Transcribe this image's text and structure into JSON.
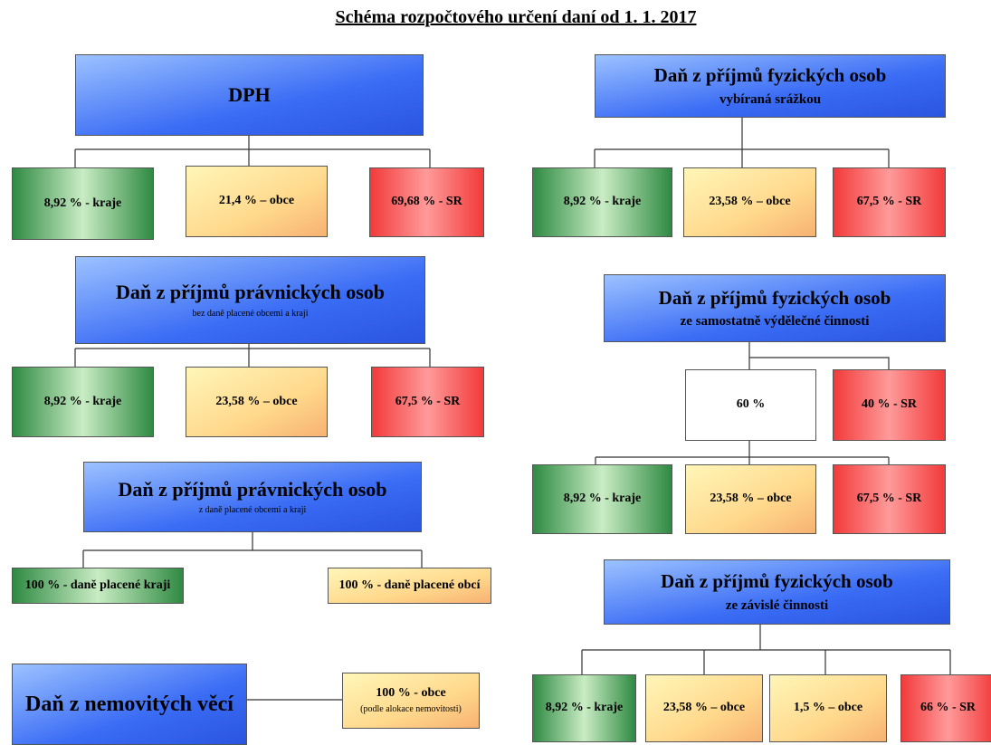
{
  "title": "Schéma rozpočtového určení daní od 1. 1. 2017",
  "boxes": [
    {
      "label": "DPH"
    },
    {
      "label": "8,92 % - kraje"
    },
    {
      "label": "21,4 % – obce"
    },
    {
      "label": "69,68 % - SR"
    },
    {
      "label": "Daň z příjmů fyzických osob",
      "sublabel": "vybíraná srážkou"
    },
    {
      "label": "8,92 % - kraje"
    },
    {
      "label": "23,58 % – obce"
    },
    {
      "label": "67,5 % - SR"
    },
    {
      "label": "Daň z příjmů právnických osob",
      "sublabel": "bez daně placené obcemi a kraji"
    },
    {
      "label": "8,92 % - kraje"
    },
    {
      "label": "23,58 % – obce"
    },
    {
      "label": "67,5 % - SR"
    },
    {
      "label": "Daň z příjmů právnických osob",
      "sublabel": "z daně placené obcemi a kraji"
    },
    {
      "label": "100 % - daně placené kraji"
    },
    {
      "label": "100 % - daně placené obcí"
    },
    {
      "label": "Daň z nemovitých věcí"
    },
    {
      "label": "100 % - obce",
      "sublabel": "(podle alokace nemovitosti)"
    },
    {
      "label": "Daň z příjmů fyzických osob",
      "sublabel": "ze samostatně výdělečné činnosti"
    },
    {
      "label": "60 %"
    },
    {
      "label": "40 % - SR"
    },
    {
      "label": "8,92 % - kraje"
    },
    {
      "label": "23,58 % – obce"
    },
    {
      "label": "67,5 % - SR"
    },
    {
      "label": "Daň z příjmů fyzických osob",
      "sublabel": "ze závislé činnosti"
    },
    {
      "label": "8,92 % - kraje"
    },
    {
      "label": "23,58 % – obce"
    },
    {
      "label": "1,5 % – obce"
    },
    {
      "label": "66 % - SR"
    }
  ]
}
